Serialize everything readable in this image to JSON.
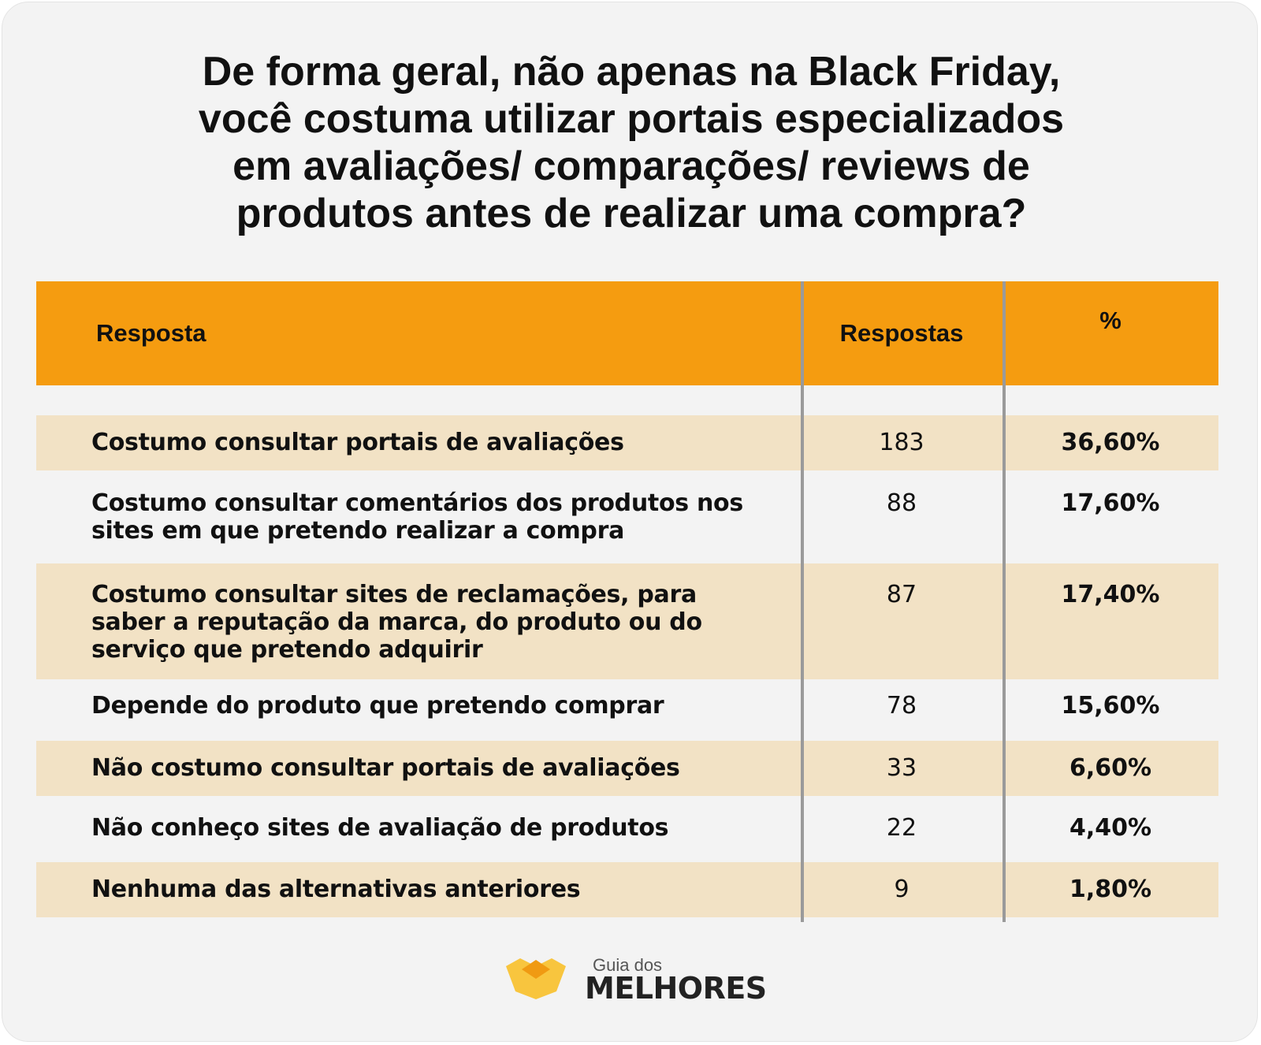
{
  "title_lines": [
    "De forma geral, não apenas na Black Friday,",
    "você costuma utilizar portais especializados",
    "em avaliações/ comparações/ reviews de",
    "produtos antes de realizar uma compra?"
  ],
  "colors": {
    "header": "#f59c10",
    "row_shaded": "#f2e2c5",
    "row_plain": "#f3f3f3",
    "divider": "#9a9a9a",
    "logo_light": "#f8c53e",
    "logo_dark": "#f09a12"
  },
  "chart_data": {
    "type": "table",
    "columns": [
      "Resposta",
      "Respostas",
      "%"
    ],
    "rows": [
      {
        "label_lines": [
          "Costumo consultar portais de avaliações"
        ],
        "count": "183",
        "pct": "36,60%"
      },
      {
        "label_lines": [
          "Costumo consultar comentários dos produtos nos",
          "sites em que pretendo realizar a compra"
        ],
        "count": "88",
        "pct": "17,60%"
      },
      {
        "label_lines": [
          "Costumo consultar sites de reclamações, para",
          "saber a reputação da marca, do produto ou do",
          "serviço que pretendo adquirir"
        ],
        "count": "87",
        "pct": "17,40%"
      },
      {
        "label_lines": [
          "Depende do produto que pretendo comprar"
        ],
        "count": "78",
        "pct": "15,60%"
      },
      {
        "label_lines": [
          "Não costumo consultar portais de avaliações"
        ],
        "count": "33",
        "pct": "6,60%"
      },
      {
        "label_lines": [
          "Não conheço sites de avaliação de produtos"
        ],
        "count": "22",
        "pct": "4,40%"
      },
      {
        "label_lines": [
          "Nenhuma das alternativas anteriores"
        ],
        "count": "9",
        "pct": "1,80%"
      }
    ]
  },
  "logo": {
    "small": "Guia dos",
    "big": "MELHORES",
    "icon": "crown-logo-icon"
  }
}
